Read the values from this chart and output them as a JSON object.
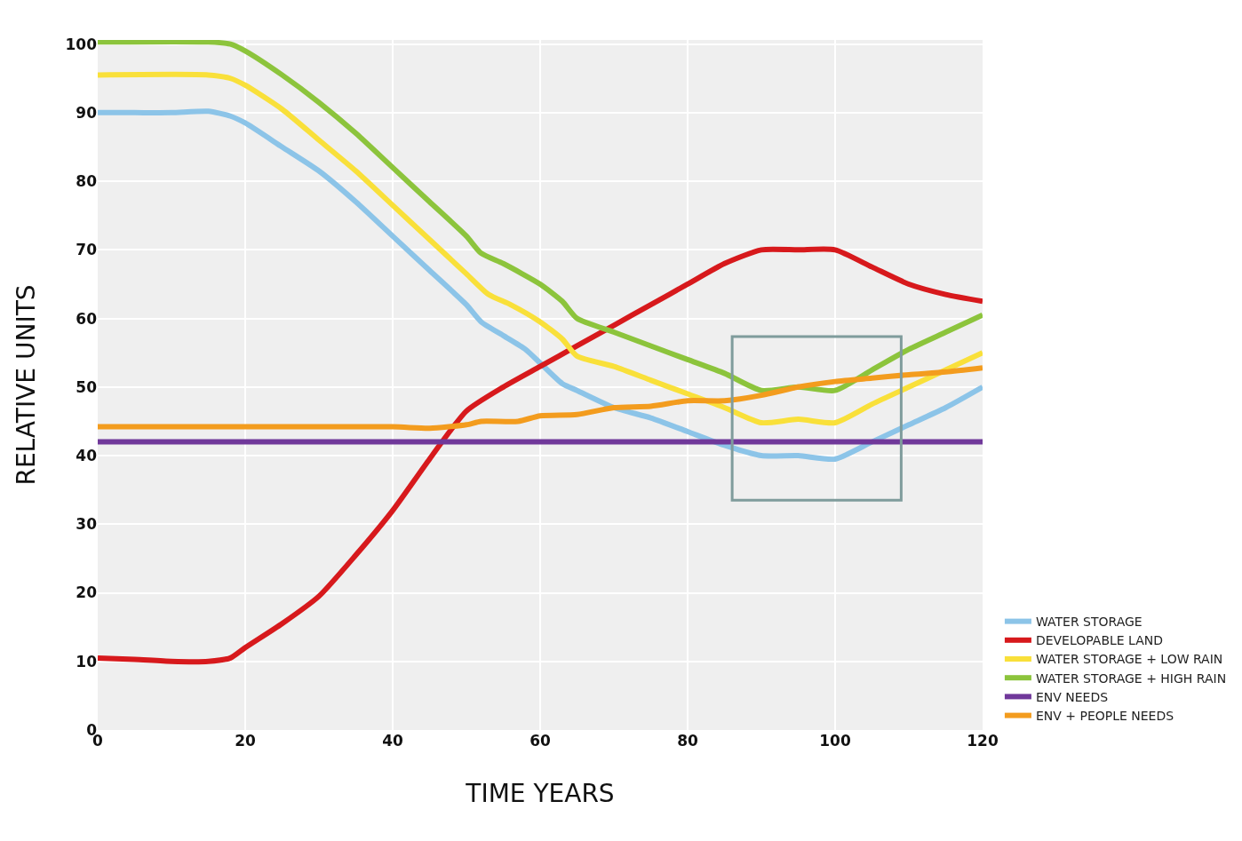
{
  "chart_data": {
    "type": "line",
    "xlabel": "TIME YEARS",
    "ylabel": "RELATIVE UNITS",
    "xlim": [
      0,
      120
    ],
    "xticks": [
      0,
      20,
      40,
      60,
      80,
      100,
      120
    ],
    "ylim": [
      0,
      100.6
    ],
    "yticks": [
      0,
      10,
      20,
      30,
      40,
      50,
      60,
      70,
      80,
      90,
      100
    ],
    "grid": true,
    "legend": "bottom right",
    "line_style": "solid",
    "marker": "none",
    "series": [
      {
        "name": "WATER STORAGE",
        "color": "#8cc4e8",
        "x": [
          0,
          5,
          10,
          15,
          18,
          20,
          25,
          30,
          35,
          40,
          45,
          50,
          52,
          55,
          58,
          60,
          63,
          65,
          70,
          75,
          80,
          85,
          90,
          95,
          100,
          105,
          110,
          115,
          120
        ],
        "values": [
          90,
          90,
          90,
          90.2,
          89.5,
          88.5,
          85,
          81.5,
          77,
          72,
          67,
          62,
          59.5,
          57.5,
          55.5,
          53.5,
          50.5,
          49.5,
          47,
          45.5,
          43.5,
          41.5,
          40,
          40,
          39.5,
          42,
          44.5,
          47,
          50
        ]
      },
      {
        "name": "DEVELOPABLE LAND",
        "color": "#d7191c",
        "x": [
          0,
          5,
          10,
          15,
          18,
          20,
          25,
          30,
          35,
          40,
          45,
          50,
          55,
          60,
          65,
          70,
          75,
          80,
          85,
          90,
          95,
          100,
          105,
          110,
          115,
          120
        ],
        "values": [
          10.5,
          10.3,
          10,
          10,
          10.5,
          12,
          15.5,
          19.5,
          25.5,
          32,
          39.5,
          46.5,
          50,
          53,
          56,
          59,
          62,
          65,
          68,
          70,
          70,
          70,
          67.5,
          65,
          63.5,
          62.5
        ]
      },
      {
        "name": "WATER STORAGE + LOW RAIN",
        "color": "#f9e03a",
        "x": [
          0,
          15,
          18,
          20,
          25,
          30,
          35,
          40,
          45,
          50,
          53,
          56,
          60,
          63,
          65,
          70,
          75,
          80,
          85,
          90,
          95,
          100,
          105,
          110,
          115,
          120
        ],
        "values": [
          95.5,
          95.5,
          95,
          94,
          90.5,
          86,
          81.5,
          76.5,
          71.5,
          66.5,
          63.5,
          62,
          59.5,
          57,
          54.5,
          53,
          51,
          49,
          47,
          44.8,
          45.3,
          44.8,
          47.5,
          50,
          52.5,
          55
        ]
      },
      {
        "name": "WATER STORAGE + HIGH RAIN",
        "color": "#8cc43c",
        "x": [
          0,
          15,
          18,
          20,
          25,
          30,
          35,
          40,
          45,
          50,
          52,
          55,
          60,
          63,
          65,
          70,
          75,
          80,
          85,
          90,
          95,
          100,
          105,
          110,
          115,
          120
        ],
        "values": [
          100.3,
          100.3,
          100,
          99,
          95.5,
          91.5,
          87,
          82,
          77,
          72,
          69.5,
          68,
          65,
          62.5,
          60,
          58,
          56,
          54,
          52,
          49.5,
          50,
          49.5,
          52.5,
          55.5,
          58,
          60.5
        ]
      },
      {
        "name": "ENV NEEDS",
        "color": "#70389a",
        "x": [
          0,
          120
        ],
        "values": [
          42,
          42
        ]
      },
      {
        "name": "ENV + PEOPLE NEEDS",
        "color": "#f39c1e",
        "x": [
          0,
          40,
          45,
          50,
          52,
          57,
          60,
          65,
          70,
          75,
          80,
          85,
          90,
          95,
          100,
          105,
          110,
          115,
          120
        ],
        "values": [
          44.2,
          44.2,
          44,
          44.5,
          45,
          45,
          45.8,
          46,
          47,
          47.2,
          48,
          48,
          48.8,
          50,
          50.8,
          51.3,
          51.8,
          52.2,
          52.8
        ]
      }
    ]
  }
}
